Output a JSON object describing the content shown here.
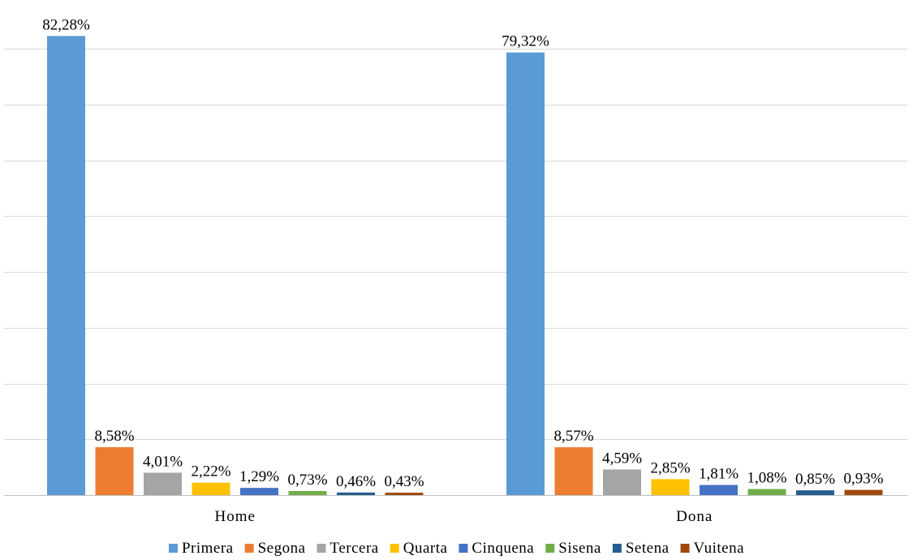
{
  "chart_data": {
    "type": "bar",
    "categories": [
      "Home",
      "Dona"
    ],
    "series": [
      {
        "name": "Primera",
        "color": "#5B9BD5",
        "values": [
          82.28,
          79.32
        ],
        "labels": [
          "82,28%",
          "79,32%"
        ]
      },
      {
        "name": "Segona",
        "color": "#ED7D31",
        "values": [
          8.58,
          8.57
        ],
        "labels": [
          "8,58%",
          "8,57%"
        ]
      },
      {
        "name": "Tercera",
        "color": "#A5A5A5",
        "values": [
          4.01,
          4.59
        ],
        "labels": [
          "4,01%",
          "4,59%"
        ]
      },
      {
        "name": "Quarta",
        "color": "#FFC000",
        "values": [
          2.22,
          2.85
        ],
        "labels": [
          "2,22%",
          "2,85%"
        ]
      },
      {
        "name": "Cinquena",
        "color": "#4472C4",
        "values": [
          1.29,
          1.81
        ],
        "labels": [
          "1,29%",
          "1,81%"
        ]
      },
      {
        "name": "Sisena",
        "color": "#70AD47",
        "values": [
          0.73,
          1.08
        ],
        "labels": [
          "0,73%",
          "1,08%"
        ]
      },
      {
        "name": "Setena",
        "color": "#255E91",
        "values": [
          0.46,
          0.85
        ],
        "labels": [
          "0,46%",
          "0,85%"
        ]
      },
      {
        "name": "Vuitena",
        "color": "#9E480E",
        "values": [
          0.43,
          0.93
        ],
        "labels": [
          "0,43%",
          "0,93%"
        ]
      }
    ],
    "ylim": [
      0,
      80
    ],
    "gridlines": true,
    "legend_position": "bottom",
    "title": "",
    "xlabel": "",
    "ylabel": ""
  }
}
